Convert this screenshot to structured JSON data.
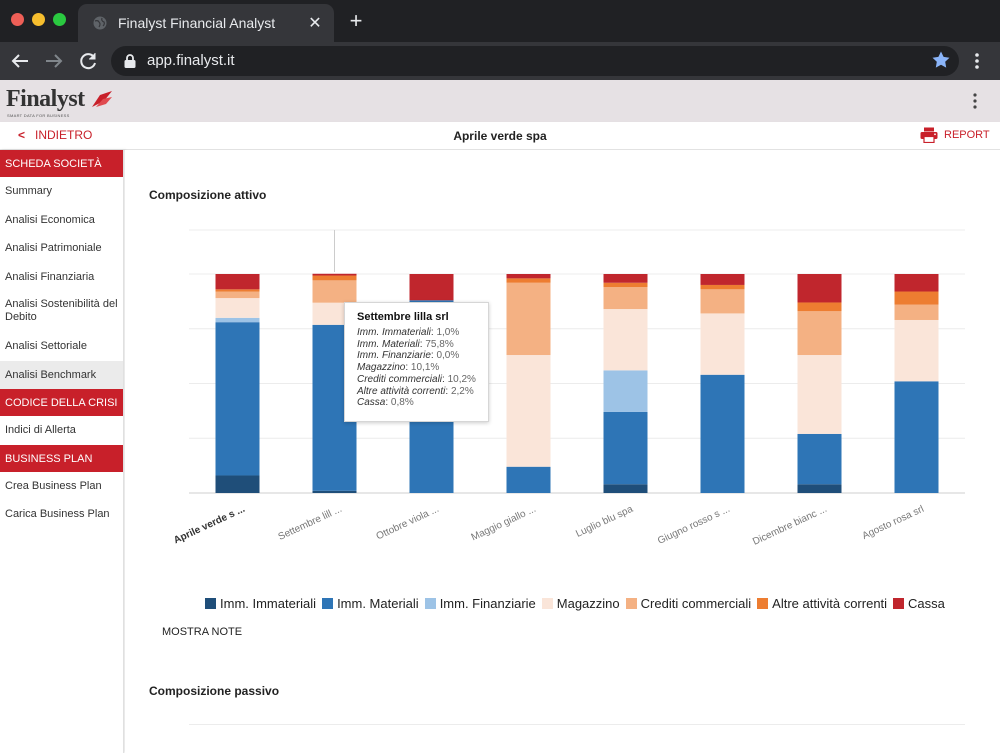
{
  "browser": {
    "tab_title": "Finalyst Financial Analyst",
    "url": "app.finalyst.it"
  },
  "app": {
    "logo_text": "Finalyst",
    "logo_tagline": "SMART DATA FOR BUSINESS",
    "back_label": "INDIETRO",
    "company_title": "Aprile verde spa",
    "report_label": "REPORT"
  },
  "sidebar": {
    "sections": [
      {
        "title": "SCHEDA SOCIETÀ",
        "items": [
          "Summary",
          "Analisi Economica",
          "Analisi Patrimoniale",
          "Analisi Finanziaria",
          "Analisi Sostenibilità del Debito",
          "Analisi Settoriale",
          "Analisi Benchmark"
        ]
      },
      {
        "title": "CODICE DELLA CRISI",
        "items": [
          "Indici di Allerta"
        ]
      },
      {
        "title": "BUSINESS PLAN",
        "items": [
          "Crea Business Plan",
          "Carica Business Plan"
        ]
      }
    ],
    "active_item": "Analisi Benchmark"
  },
  "main": {
    "section_title_1": "Composizione attivo",
    "section_title_2": "Composizione passivo",
    "mostra_note": "MOSTRA NOTE"
  },
  "tooltip": {
    "title": "Settembre lilla srl",
    "rows": [
      {
        "label": "Imm. Immateriali",
        "value": "1,0%"
      },
      {
        "label": "Imm. Materiali",
        "value": "75,8%"
      },
      {
        "label": "Imm. Finanziarie",
        "value": "0,0%"
      },
      {
        "label": "Magazzino",
        "value": "10,1%"
      },
      {
        "label": "Crediti commerciali",
        "value": "10,2%"
      },
      {
        "label": "Altre attività correnti",
        "value": "2,2%"
      },
      {
        "label": "Cassa",
        "value": "0,8%"
      }
    ]
  },
  "chart_data": {
    "type": "bar",
    "stacked": true,
    "title": "Composizione attivo",
    "categories": [
      "Aprile verde s ...",
      "Settembre lill ...",
      "Ottobre viola ...",
      "Maggio giallo ...",
      "Luglio blu spa",
      "Giugno rosso s ...",
      "Dicembre bianc ...",
      "Agosto rosa srl"
    ],
    "ylim": [
      0,
      100
    ],
    "grid": true,
    "legend_position": "bottom",
    "series": [
      {
        "name": "Imm. Immateriali",
        "color": "#1f4e79",
        "values": [
          8,
          1,
          0,
          0,
          4,
          0,
          4,
          0
        ]
      },
      {
        "name": "Imm. Materiali",
        "color": "#2e75b6",
        "values": [
          70,
          75.8,
          88,
          12,
          33,
          54,
          23,
          51
        ]
      },
      {
        "name": "Imm. Finanziarie",
        "color": "#9dc3e6",
        "values": [
          2,
          0,
          0,
          0,
          19,
          0,
          0,
          0
        ]
      },
      {
        "name": "Magazzino",
        "color": "#fae5d9",
        "values": [
          9,
          10.1,
          0,
          51,
          28,
          28,
          36,
          28
        ]
      },
      {
        "name": "Crediti commerciali",
        "color": "#f4b183",
        "values": [
          3,
          10.2,
          0,
          33,
          10,
          11,
          20,
          7
        ]
      },
      {
        "name": "Altre attività correnti",
        "color": "#ed7d31",
        "values": [
          1,
          2.2,
          0,
          2,
          2,
          2,
          4,
          6
        ]
      },
      {
        "name": "Cassa",
        "color": "#c0262d",
        "values": [
          7,
          0.8,
          12,
          2,
          4,
          5,
          13,
          8
        ]
      }
    ]
  }
}
